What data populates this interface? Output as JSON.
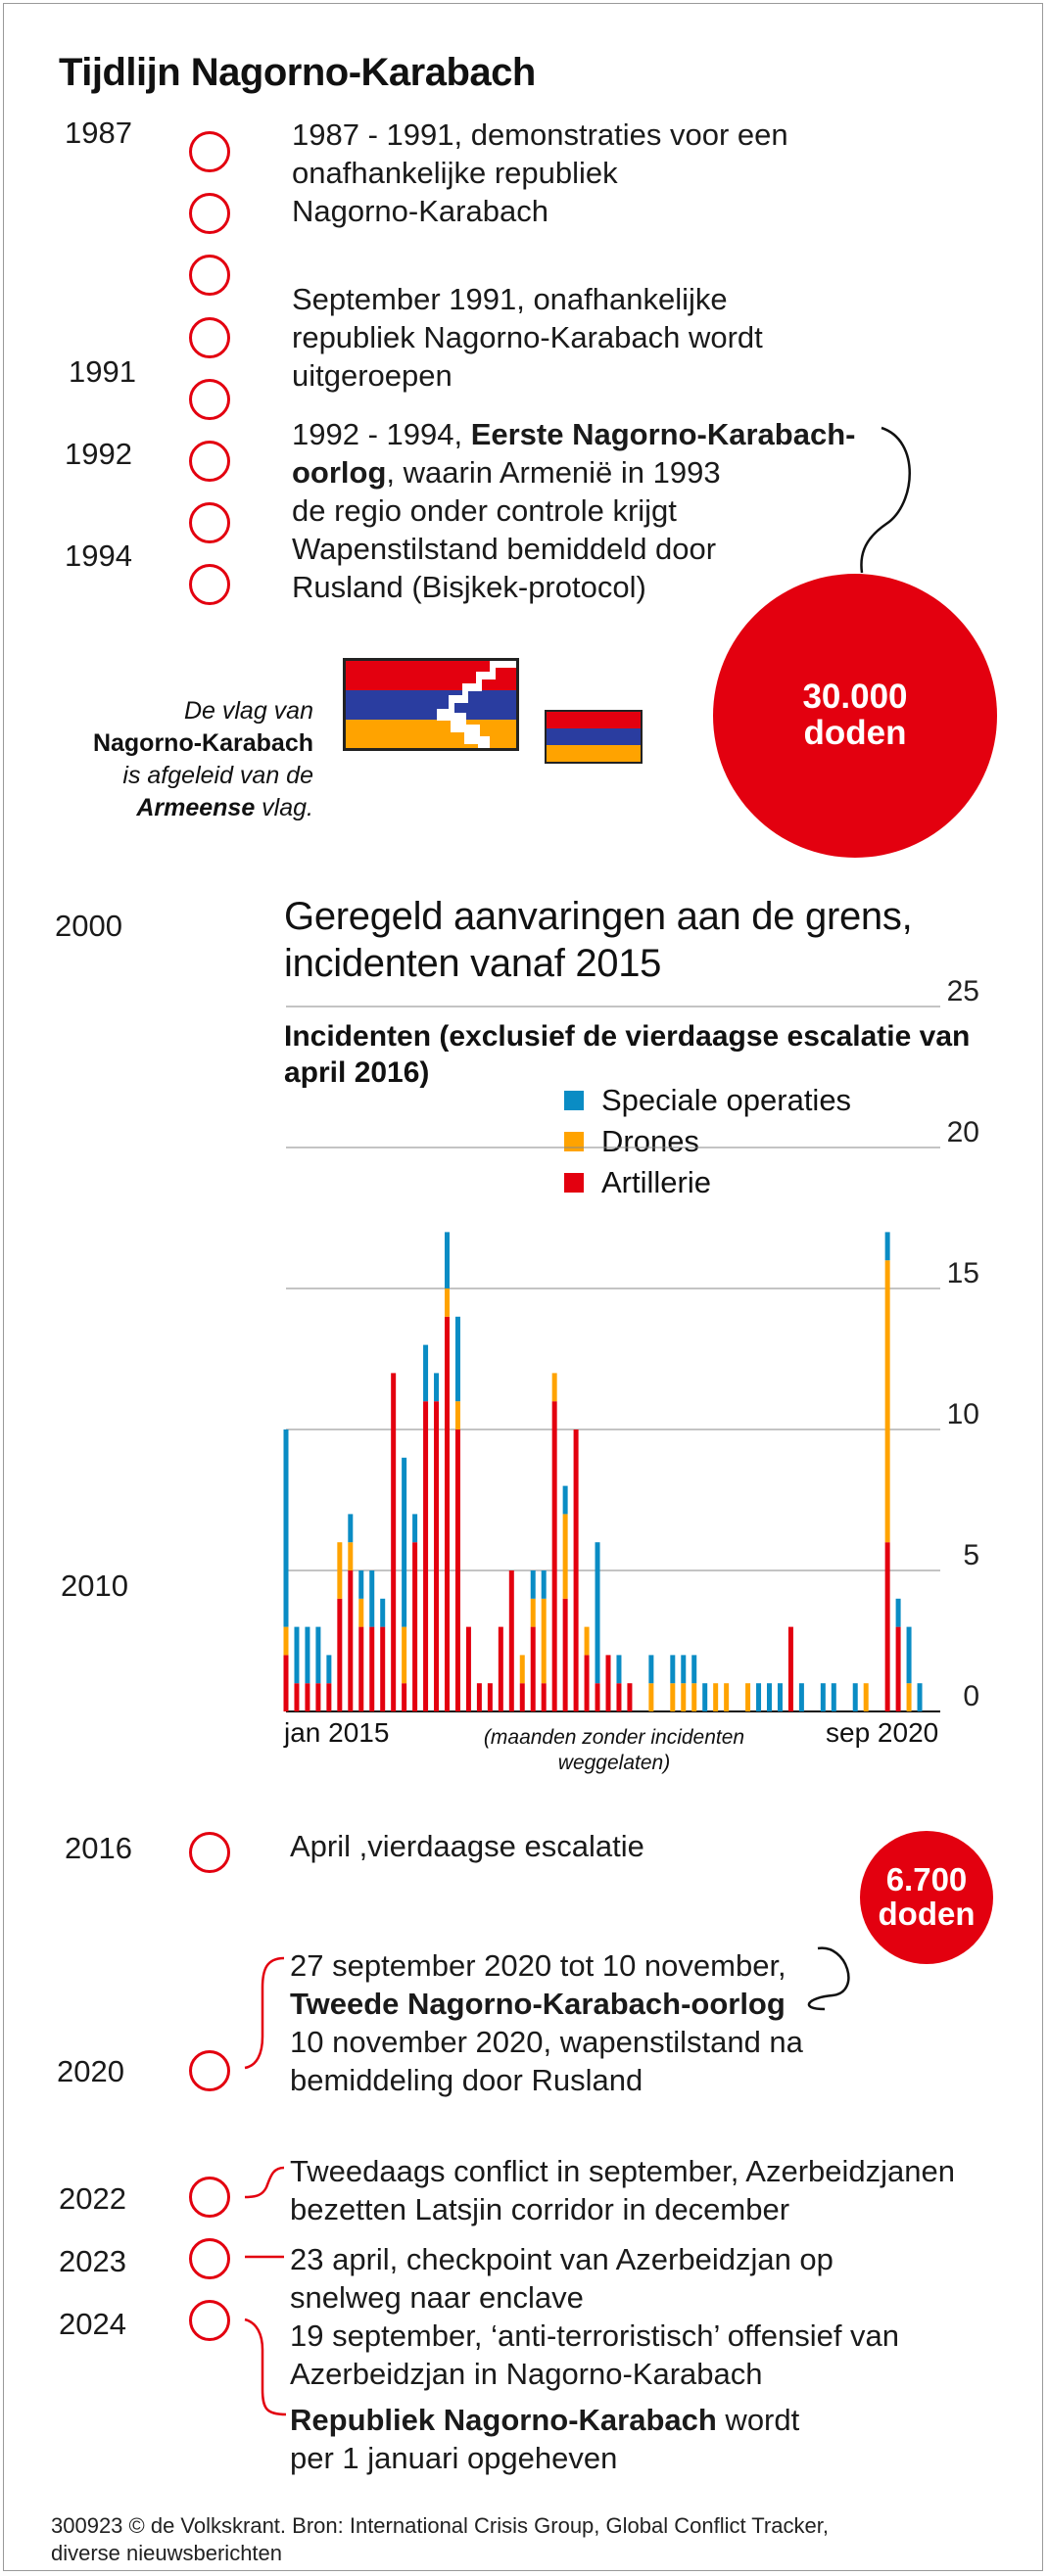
{
  "title": "Tijdlijn Nagorno-Karabach",
  "years": {
    "y1987": "1987",
    "y1991": "1991",
    "y1992": "1992",
    "y1994": "1994",
    "y2000": "2000",
    "y2010": "2010",
    "y2016": "2016",
    "y2020": "2020",
    "y2022": "2022",
    "y2023": "2023",
    "y2024": "2024"
  },
  "events": {
    "e1987": [
      "1987 - 1991, demonstraties voor een",
      "onafhankelijke republiek",
      "Nagorno-Karabach"
    ],
    "e1991": [
      "September 1991, onafhankelijke",
      "republiek Nagorno-Karabach wordt",
      "uitgeroepen"
    ],
    "e1992_a": "1992 - 1994, ",
    "e1992_b": "Eerste Nagorno-Karabach-",
    "e1992_c": "oorlog",
    "e1992_d": ", waarin Armenië in 1993",
    "e1992_rest": [
      "de regio onder controle krijgt",
      "Wapenstilstand bemiddeld door",
      "Rusland (Bisjkek-protocol)"
    ],
    "e2016": "April ,vierdaagse escalatie",
    "e2020_a": "27 september 2020 tot 10 november,",
    "e2020_b": "Tweede Nagorno-Karabach-oorlog",
    "e2020_rest": [
      "10 november 2020, wapenstilstand na",
      "bemiddeling door Rusland"
    ],
    "e2022": [
      "Tweedaags conflict in september, Azerbeidzjanen",
      "bezetten Latsjin corridor in december"
    ],
    "e2023": [
      "23 april, checkpoint van Azerbeidzjan op",
      "snelweg naar enclave"
    ],
    "e2024": [
      "19 september, ‘anti-terroristisch’ offensief van",
      "Azerbeidzjan in Nagorno-Karabach"
    ],
    "e2024_b": "Republiek Nagorno-Karabach",
    "e2024_c": " wordt",
    "e2024_d": "per 1 januari opgeheven"
  },
  "death_circles": {
    "first": {
      "number": "30.000",
      "label": "doden"
    },
    "second": {
      "number": "6.700",
      "label": "doden"
    }
  },
  "flag_note": {
    "l1": "De vlag van",
    "l2": "Nagorno-Karabach",
    "l3": "is afgeleid van de",
    "l4a": "Armeense",
    "l4b": " vlag."
  },
  "colors": {
    "red": "#e3000f",
    "blue": "#0a8cc4",
    "orange": "#ffa300",
    "flag_blue": "#2a3da0"
  },
  "chart_data": {
    "type": "bar",
    "stacked": true,
    "title": "Geregeld aanvaringen aan de grens, incidenten vanaf 2015",
    "subtitle": "Incidenten (exclusief de vierdaagse escalatie van april 2016)",
    "x_first_label": "jan 2015",
    "x_middle_note": [
      "(maanden zonder incidenten",
      "weggelaten)"
    ],
    "x_last_label": "sep 2020",
    "ylim": [
      0,
      25
    ],
    "yticks": [
      0,
      5,
      10,
      15,
      20,
      25
    ],
    "series": [
      {
        "name": "Speciale operaties",
        "color": "#0a8cc4",
        "values": [
          7,
          2,
          2,
          2,
          1,
          0,
          1,
          1,
          2,
          1,
          0,
          6,
          1,
          2,
          1,
          2,
          3,
          0,
          0,
          0,
          0,
          0,
          0,
          1,
          1,
          0,
          1,
          0,
          0,
          5,
          0,
          1,
          0,
          0,
          1,
          0,
          1,
          1,
          1,
          1,
          0,
          0,
          0,
          0,
          1,
          1,
          1,
          0,
          1,
          0,
          1,
          1,
          0,
          1,
          0,
          0,
          1,
          1,
          2,
          1,
          0
        ]
      },
      {
        "name": "Drones",
        "color": "#ffa300",
        "values": [
          1,
          0,
          0,
          0,
          0,
          2,
          1,
          1,
          0,
          0,
          0,
          2,
          0,
          0,
          0,
          1,
          1,
          0,
          0,
          0,
          0,
          0,
          1,
          1,
          3,
          1,
          3,
          0,
          1,
          0,
          0,
          0,
          0,
          0,
          1,
          0,
          1,
          1,
          1,
          0,
          1,
          1,
          0,
          1,
          0,
          0,
          0,
          0,
          0,
          0,
          0,
          0,
          0,
          0,
          1,
          0,
          10,
          0,
          1,
          0,
          0
        ]
      },
      {
        "name": "Artillerie",
        "color": "#e3000f",
        "values": [
          2,
          1,
          1,
          1,
          1,
          4,
          5,
          3,
          3,
          3,
          12,
          1,
          6,
          11,
          11,
          14,
          10,
          3,
          1,
          1,
          3,
          5,
          1,
          3,
          1,
          11,
          4,
          10,
          2,
          1,
          2,
          1,
          1,
          0,
          0,
          0,
          0,
          0,
          0,
          0,
          0,
          0,
          0,
          0,
          0,
          0,
          0,
          3,
          0,
          0,
          0,
          0,
          0,
          0,
          0,
          0,
          6,
          3,
          0,
          0,
          0
        ]
      }
    ]
  },
  "footer": [
    "300923 © de Volkskrant. Bron: International Crisis Group, Global Conflict Tracker,",
    "diverse nieuwsberichten"
  ]
}
